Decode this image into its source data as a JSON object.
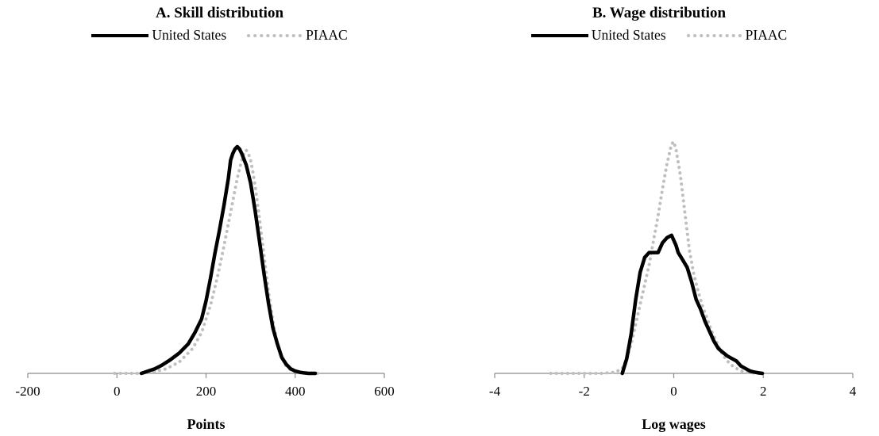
{
  "chart_data": [
    {
      "type": "line",
      "title": "A. Skill distribution",
      "xlabel": "Points",
      "ylabel": "",
      "xlim": [
        -200,
        600
      ],
      "xticks": [
        "-200",
        "0",
        "200",
        "400",
        "600"
      ],
      "xtick_values": [
        -200,
        0,
        200,
        400,
        600
      ],
      "grid": false,
      "legend": "top-center",
      "series": [
        {
          "name": "United States",
          "style": "solid",
          "color": "#000000",
          "x": [
            55,
            70,
            85,
            100,
            120,
            140,
            160,
            175,
            190,
            200,
            210,
            220,
            230,
            240,
            250,
            255,
            260,
            265,
            270,
            275,
            280,
            290,
            300,
            310,
            320,
            330,
            340,
            350,
            360,
            370,
            380,
            390,
            400,
            410,
            420,
            430,
            445
          ],
          "y": [
            0.0,
            0.01,
            0.02,
            0.035,
            0.06,
            0.09,
            0.13,
            0.18,
            0.24,
            0.32,
            0.42,
            0.53,
            0.63,
            0.74,
            0.86,
            0.94,
            0.97,
            0.99,
            1.0,
            0.99,
            0.97,
            0.92,
            0.84,
            0.72,
            0.58,
            0.44,
            0.31,
            0.2,
            0.13,
            0.07,
            0.04,
            0.02,
            0.01,
            0.005,
            0.002,
            0.0,
            0.0
          ]
        },
        {
          "name": "PIAAC",
          "style": "dotted",
          "color": "#bfbfbf",
          "x": [
            -5,
            20,
            50,
            80,
            110,
            140,
            170,
            190,
            210,
            225,
            240,
            250,
            260,
            270,
            280,
            285,
            290,
            295,
            300,
            305,
            310,
            320,
            330,
            340,
            350,
            360,
            370,
            380,
            390,
            400,
            420,
            440,
            460
          ],
          "y": [
            0.0,
            0.0,
            0.0,
            0.005,
            0.02,
            0.05,
            0.11,
            0.18,
            0.3,
            0.42,
            0.56,
            0.66,
            0.76,
            0.86,
            0.94,
            0.97,
            0.985,
            0.97,
            0.94,
            0.89,
            0.83,
            0.68,
            0.52,
            0.36,
            0.23,
            0.13,
            0.07,
            0.03,
            0.015,
            0.007,
            0.002,
            0.0,
            0.0
          ]
        }
      ]
    },
    {
      "type": "line",
      "title": "B. Wage distribution",
      "xlabel": "Log wages",
      "ylabel": "",
      "xlim": [
        -4,
        4
      ],
      "xticks": [
        "-4",
        "-2",
        "0",
        "2",
        "4"
      ],
      "xtick_values": [
        -4,
        -2,
        0,
        2,
        4
      ],
      "grid": false,
      "legend": "top-center",
      "series": [
        {
          "name": "United States",
          "style": "solid",
          "color": "#000000",
          "x": [
            -1.15,
            -1.05,
            -0.95,
            -0.85,
            -0.75,
            -0.65,
            -0.55,
            -0.45,
            -0.35,
            -0.25,
            -0.15,
            -0.05,
            0.0,
            0.05,
            0.1,
            0.2,
            0.3,
            0.4,
            0.5,
            0.6,
            0.7,
            0.8,
            0.9,
            1.0,
            1.1,
            1.2,
            1.3,
            1.4,
            1.5,
            1.6,
            1.7,
            1.8,
            1.9,
            1.98
          ],
          "y": [
            0.0,
            0.06,
            0.16,
            0.3,
            0.41,
            0.47,
            0.49,
            0.49,
            0.49,
            0.53,
            0.55,
            0.56,
            0.54,
            0.52,
            0.49,
            0.46,
            0.43,
            0.37,
            0.3,
            0.26,
            0.21,
            0.17,
            0.13,
            0.1,
            0.085,
            0.07,
            0.06,
            0.05,
            0.03,
            0.02,
            0.01,
            0.005,
            0.002,
            0.0
          ]
        },
        {
          "name": "PIAAC",
          "style": "dotted",
          "color": "#bfbfbf",
          "x": [
            -2.75,
            -2.2,
            -1.6,
            -1.3,
            -1.15,
            -1.05,
            -0.95,
            -0.85,
            -0.75,
            -0.65,
            -0.55,
            -0.45,
            -0.35,
            -0.25,
            -0.15,
            -0.05,
            0.0,
            0.05,
            0.15,
            0.25,
            0.35,
            0.45,
            0.55,
            0.65,
            0.75,
            0.85,
            0.95,
            1.05,
            1.15,
            1.25,
            1.35,
            1.5,
            1.7,
            1.9
          ],
          "y": [
            0.0,
            0.0,
            0.0,
            0.005,
            0.02,
            0.06,
            0.12,
            0.2,
            0.28,
            0.36,
            0.44,
            0.54,
            0.64,
            0.75,
            0.85,
            0.93,
            0.94,
            0.91,
            0.8,
            0.65,
            0.5,
            0.4,
            0.33,
            0.27,
            0.22,
            0.17,
            0.13,
            0.09,
            0.06,
            0.04,
            0.025,
            0.01,
            0.003,
            0.0
          ]
        }
      ]
    }
  ],
  "legend_swatch_colors": {
    "solid": "#000000",
    "dotted": "#bfbfbf"
  }
}
